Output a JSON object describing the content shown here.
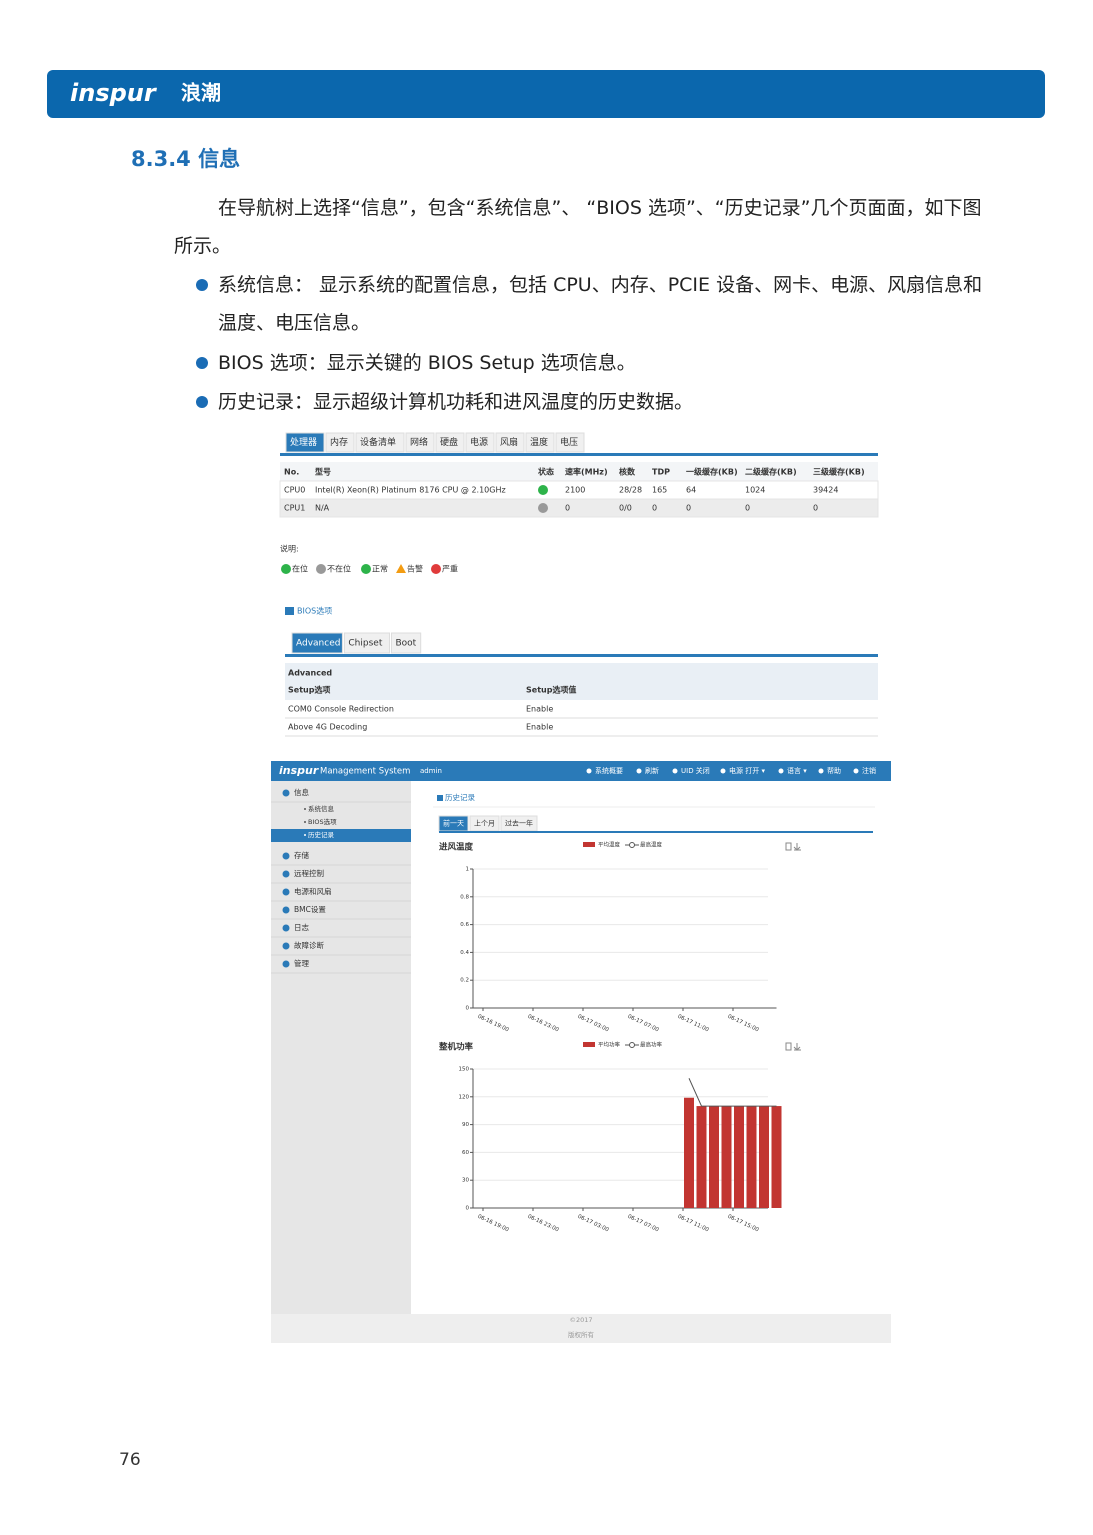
{
  "header": {
    "logo": "inspur",
    "logo_cn": "浪潮"
  },
  "section": {
    "title": "8.3.4 信息",
    "intro": "在导航树上选择“信息”，包含“系统信息”、 “BIOS 选项”、“历史记录”几个页面面，如下图所示。",
    "bullets": [
      "系统信息： 显示系统的配置信息，包括 CPU、内存、PCIE 设备、网卡、电源、风扇信息和温度、电压信息。",
      "BIOS 选项：显示关键的 BIOS Setup 选项信息。",
      "历史记录：显示超级计算机功耗和进风温度的历史数据。"
    ]
  },
  "cpu_screenshot": {
    "tabs": [
      "处理器",
      "内存",
      "设备清单",
      "网络",
      "硬盘",
      "电源",
      "风扇",
      "温度",
      "电压"
    ],
    "header": [
      "No.",
      "型号",
      "状态",
      "速率(MHz)",
      "核数",
      "TDP",
      "一级缓存(KB)",
      "二级缓存(KB)",
      "三级缓存(KB)"
    ],
    "rows": [
      [
        "CPU0",
        "Intel(R) Xeon(R) Platinum 8176 CPU @ 2.10GHz",
        "2100",
        "28/28",
        "165",
        "64",
        "1024",
        "39424"
      ],
      [
        "CPU1",
        "N/A",
        "0",
        "0/0",
        "0",
        "0",
        "0",
        "0"
      ]
    ],
    "status_colors": [
      "#2db34a",
      "#999999"
    ],
    "legend_title": "说明:",
    "legend": [
      "在位",
      "不在位",
      "正常",
      "告警",
      "严重"
    ]
  },
  "bios_screenshot": {
    "title": "BIOS选项",
    "tabs": [
      "Advanced",
      "Chipset",
      "Boot"
    ],
    "group": "Advanced",
    "header": [
      "Setup选项",
      "Setup选项值"
    ],
    "rows": [
      [
        "COM0 Console Redirection",
        "Enable"
      ],
      [
        "Above 4G Decoding",
        "Enable"
      ]
    ]
  },
  "history_screenshot": {
    "brand": "inspur",
    "system": "Management System",
    "user": "admin",
    "nav": [
      "系统概要",
      "刷新",
      "UID 关闭",
      "电源 打开 ▾",
      "语言 ▾",
      "帮助",
      "注销"
    ],
    "sidebar": [
      {
        "label": "信息",
        "children": [
          "系统信息",
          "BIOS选项",
          "历史记录"
        ]
      },
      {
        "label": "存储"
      },
      {
        "label": "远程控制"
      },
      {
        "label": "电源和风扇"
      },
      {
        "label": "BMC设置"
      },
      {
        "label": "日志"
      },
      {
        "label": "故障诊断"
      },
      {
        "label": "管理"
      }
    ],
    "title": "历史记录",
    "tabs": [
      "前一天",
      "上个月",
      "过去一年"
    ],
    "charts": [
      {
        "type": "bar",
        "title": "进风温度",
        "categories": [
          "06-16 19:00",
          null,
          null,
          null,
          "06-16 23:00",
          null,
          null,
          null,
          "06-17 03:00",
          null,
          null,
          null,
          "06-17 07:00",
          null,
          null,
          null,
          "06-17 11:00",
          null,
          null,
          null,
          "06-17 15:00",
          null,
          null,
          null
        ],
        "series": [
          {
            "name": "平均温度",
            "type": "bar",
            "color": "#c23531",
            "values": [
              null,
              null,
              null,
              null,
              null,
              null,
              null,
              null,
              null,
              null,
              null,
              null,
              null,
              null,
              null,
              null,
              0,
              0,
              0,
              0,
              0,
              0,
              0,
              0
            ]
          },
          {
            "name": "最高温度",
            "type": "line",
            "color": "#555555",
            "values": [
              null,
              null,
              null,
              null,
              null,
              null,
              null,
              null,
              null,
              null,
              null,
              null,
              null,
              null,
              null,
              null,
              0,
              0,
              0,
              0,
              0,
              0,
              0,
              0
            ]
          }
        ],
        "ylim": [
          0,
          1
        ],
        "yticks": [
          0,
          0.2,
          0.4,
          0.6,
          0.8,
          1
        ],
        "grid": true
      },
      {
        "type": "bar",
        "title": "整机功率",
        "categories": [
          "06-16 19:00",
          null,
          null,
          null,
          "06-16 23:00",
          null,
          null,
          null,
          "06-17 03:00",
          null,
          null,
          null,
          "06-17 07:00",
          null,
          null,
          null,
          "06-17 11:00",
          null,
          null,
          null,
          "06-17 15:00",
          null,
          null,
          null
        ],
        "series": [
          {
            "name": "平均功率",
            "type": "bar",
            "color": "#c23531",
            "values": [
              null,
              null,
              null,
              null,
              null,
              null,
              null,
              null,
              null,
              null,
              null,
              null,
              null,
              null,
              null,
              null,
              119,
              110,
              110,
              110,
              110,
              110,
              110,
              110
            ]
          },
          {
            "name": "最高功率",
            "type": "line",
            "color": "#555555",
            "values": [
              null,
              null,
              null,
              null,
              null,
              null,
              null,
              null,
              null,
              null,
              null,
              null,
              null,
              null,
              null,
              null,
              140,
              110,
              110,
              110,
              110,
              110,
              110,
              110
            ]
          }
        ],
        "ylim": [
          0,
          150
        ],
        "yticks": [
          0,
          30,
          60,
          90,
          120,
          150
        ],
        "grid": true
      }
    ],
    "footer": [
      "©2017",
      "版权所有"
    ]
  },
  "page_number": "76"
}
